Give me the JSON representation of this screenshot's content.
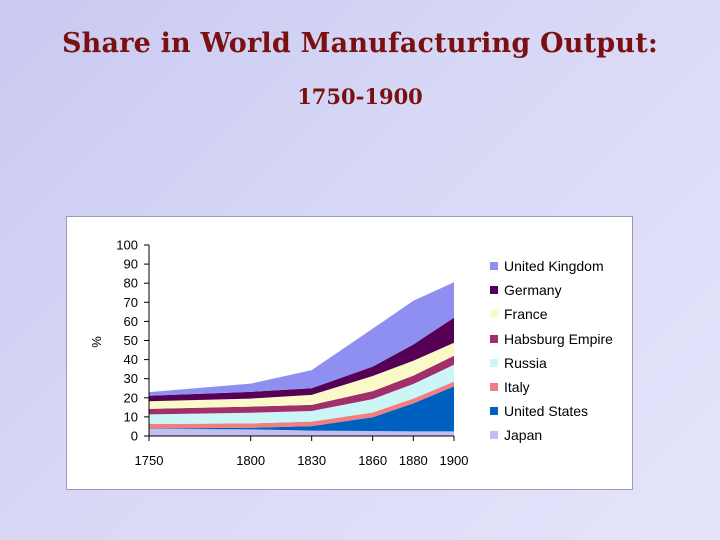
{
  "slide": {
    "title": "Share in World Manufacturing Output:",
    "subtitle": "1750-1900"
  },
  "chart_data": {
    "type": "area",
    "stacked": true,
    "x": [
      1750,
      1800,
      1830,
      1860,
      1880,
      1900
    ],
    "xlabel": "",
    "ylabel": "%",
    "ylim": [
      0,
      100
    ],
    "yticks": [
      0,
      10,
      20,
      30,
      40,
      50,
      60,
      70,
      80,
      90,
      100
    ],
    "legend_position": "right",
    "series": [
      {
        "name": "Japan",
        "color": "#c0c0f0",
        "values": [
          3.8,
          3.5,
          2.8,
          2.6,
          2.4,
          2.4
        ]
      },
      {
        "name": "United States",
        "color": "#0060c0",
        "values": [
          0.1,
          0.8,
          2.4,
          7.2,
          14.7,
          23.6
        ]
      },
      {
        "name": "Italy",
        "color": "#f08080",
        "values": [
          2.4,
          2.3,
          2.3,
          2.5,
          2.5,
          2.5
        ]
      },
      {
        "name": "Russia",
        "color": "#ccf5f8",
        "values": [
          5.0,
          5.6,
          5.6,
          7.0,
          7.6,
          8.8
        ]
      },
      {
        "name": "Habsburg Empire",
        "color": "#a0306a",
        "values": [
          2.9,
          3.2,
          3.2,
          4.2,
          4.4,
          4.7
        ]
      },
      {
        "name": "France",
        "color": "#fafac8",
        "values": [
          4.0,
          4.2,
          5.2,
          7.9,
          7.8,
          6.8
        ]
      },
      {
        "name": "Germany",
        "color": "#550055",
        "values": [
          2.9,
          3.5,
          3.5,
          4.9,
          8.5,
          13.2
        ]
      },
      {
        "name": "United Kingdom",
        "color": "#8f8ff2",
        "values": [
          1.9,
          4.3,
          9.5,
          19.9,
          22.9,
          18.5
        ]
      }
    ]
  }
}
